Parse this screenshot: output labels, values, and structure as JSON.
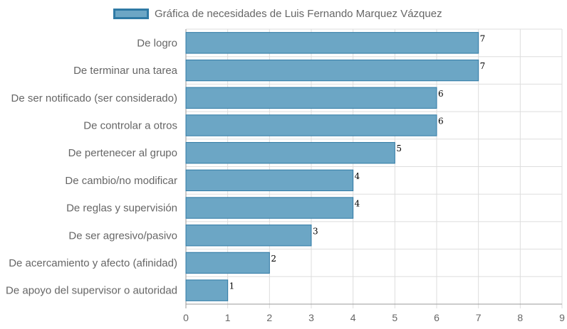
{
  "chart_data": {
    "type": "bar",
    "orientation": "horizontal",
    "title": "",
    "xlabel": "",
    "ylabel": "",
    "series": [
      {
        "name": "Gráfica de necesidades de Luis Fernando Marquez Vázquez",
        "values": [
          7,
          7,
          6,
          6,
          5,
          4,
          4,
          3,
          2,
          1
        ]
      }
    ],
    "categories": [
      "De logro",
      "De terminar una tarea",
      "De ser notificado (ser considerado)",
      "De controlar a otros",
      "De pertenecer al grupo",
      "De cambio/no modificar",
      "De reglas y supervisión",
      "De ser agresivo/pasivo",
      "De acercamiento y afecto (afinidad)",
      "De apoyo del supervisor o autoridad"
    ],
    "x_ticks": [
      "0",
      "1",
      "2",
      "3",
      "4",
      "5",
      "6",
      "7",
      "8",
      "9"
    ],
    "xlim": [
      0,
      9
    ],
    "grid": true,
    "legend_position": "top",
    "colors": {
      "bar_fill": "#6ca6c5",
      "bar_border": "#2f7aa5",
      "grid": "#dddddd",
      "axis": "#999999"
    }
  }
}
